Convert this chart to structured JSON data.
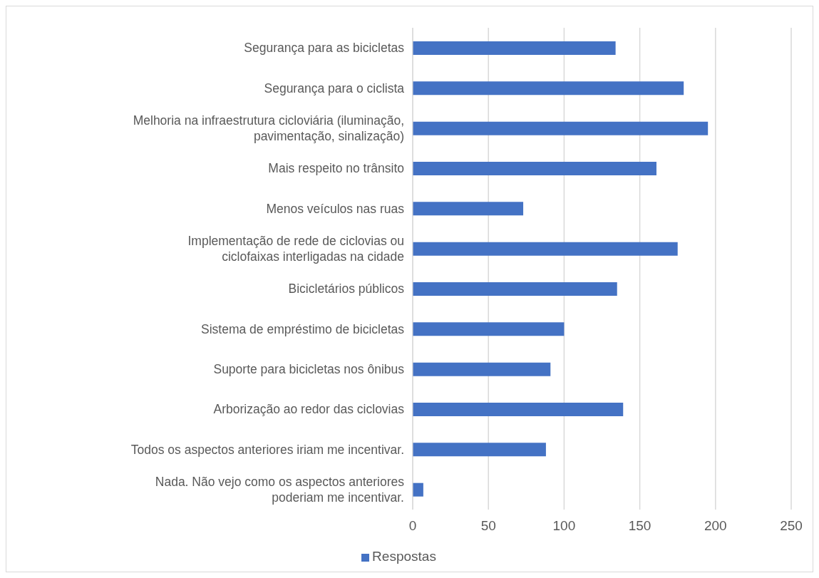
{
  "chart_data": {
    "type": "bar",
    "orientation": "horizontal",
    "categories": [
      "Segurança para as bicicletas",
      "Segurança para o ciclista",
      "Melhoria na infraestrutura cicloviária (iluminação,\npavimentação, sinalização)",
      "Mais respeito no trânsito",
      "Menos veículos nas ruas",
      "Implementação de rede de ciclovias ou\nciclofaixas interligadas na cidade",
      "Bicicletários públicos",
      "Sistema de empréstimo de bicicletas",
      "Suporte para bicicletas nos ônibus",
      "Arborização ao redor das ciclovias",
      "Todos os aspectos anteriores iriam me incentivar.",
      "Nada. Não vejo como os aspectos anteriores\npoderiam me incentivar."
    ],
    "series": [
      {
        "name": "Respostas",
        "color": "#4472c4",
        "values": [
          134,
          179,
          195,
          161,
          73,
          175,
          135,
          100,
          91,
          139,
          88,
          7
        ]
      }
    ],
    "xlim": [
      0,
      250
    ],
    "xticks": [
      0,
      50,
      100,
      150,
      200,
      250
    ],
    "grid": "x",
    "legend": "bottom"
  }
}
